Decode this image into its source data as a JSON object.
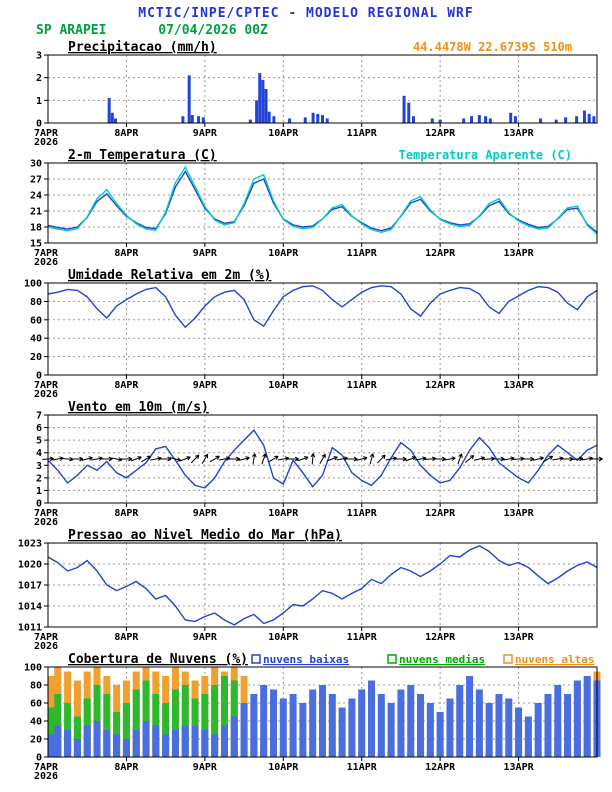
{
  "header": {
    "title": "MCTIC/INPE/CPTEC - MODELO REGIONAL WRF",
    "station": "SP ARAPEI",
    "datetime": "07/04/2026 00Z"
  },
  "colors": {
    "header_blue": "#2233dd",
    "station_green": "#00a040",
    "line_blue": "#2244cc",
    "apparent_cyan": "#00cccc",
    "location_orange": "#f39019",
    "grid_gray": "#999999",
    "axis_black": "#000000"
  },
  "x_axis": {
    "start_label": "7APR",
    "year_label": "2026",
    "day_labels": [
      "8APR",
      "9APR",
      "10APR",
      "11APR",
      "12APR",
      "13APR"
    ],
    "days_total": 7
  },
  "chart_data": [
    {
      "type": "bar",
      "title": "Precipitacao (mm/h)",
      "annotation": {
        "text": "44.4478W 22.6739S 510m",
        "color": "#f39019"
      },
      "ylim": [
        0,
        3
      ],
      "yticks": [
        0,
        1,
        2,
        3
      ],
      "bar_color": "#2343d7",
      "points": [
        [
          0.78,
          1.1
        ],
        [
          0.82,
          0.45
        ],
        [
          0.86,
          0.2
        ],
        [
          1.72,
          0.3
        ],
        [
          1.8,
          2.1
        ],
        [
          1.84,
          0.35
        ],
        [
          1.92,
          0.3
        ],
        [
          1.98,
          0.25
        ],
        [
          2.58,
          0.15
        ],
        [
          2.66,
          1.0
        ],
        [
          2.7,
          2.2
        ],
        [
          2.74,
          1.9
        ],
        [
          2.78,
          1.5
        ],
        [
          2.82,
          0.5
        ],
        [
          2.88,
          0.3
        ],
        [
          3.08,
          0.2
        ],
        [
          3.28,
          0.25
        ],
        [
          3.38,
          0.45
        ],
        [
          3.44,
          0.4
        ],
        [
          3.5,
          0.35
        ],
        [
          3.56,
          0.2
        ],
        [
          4.54,
          1.2
        ],
        [
          4.6,
          0.9
        ],
        [
          4.66,
          0.3
        ],
        [
          4.9,
          0.2
        ],
        [
          5.0,
          0.15
        ],
        [
          5.3,
          0.2
        ],
        [
          5.4,
          0.3
        ],
        [
          5.5,
          0.35
        ],
        [
          5.58,
          0.3
        ],
        [
          5.64,
          0.2
        ],
        [
          5.9,
          0.45
        ],
        [
          5.96,
          0.3
        ],
        [
          6.28,
          0.2
        ],
        [
          6.48,
          0.15
        ],
        [
          6.6,
          0.25
        ],
        [
          6.74,
          0.3
        ],
        [
          6.84,
          0.55
        ],
        [
          6.9,
          0.4
        ],
        [
          6.96,
          0.3
        ]
      ]
    },
    {
      "type": "line",
      "title": "2-m Temperatura (C)",
      "annotation": {
        "text": "Temperatura Aparente (C)",
        "color": "#00cccc"
      },
      "ylim": [
        15,
        30
      ],
      "yticks": [
        15,
        18,
        21,
        24,
        27,
        30
      ],
      "dt_days": 0.125,
      "series": [
        {
          "name": "2-m Temperatura",
          "color": "#2244cc",
          "values": [
            18.3,
            17.9,
            17.6,
            18.0,
            19.8,
            22.8,
            24.2,
            22.0,
            20.0,
            18.8,
            17.9,
            17.7,
            20.5,
            25.5,
            28.4,
            25.0,
            21.5,
            19.5,
            18.7,
            19.0,
            22.0,
            26.2,
            27.0,
            22.5,
            19.5,
            18.4,
            18.0,
            18.2,
            19.5,
            21.3,
            21.8,
            20.0,
            18.8,
            17.8,
            17.3,
            17.8,
            20.0,
            22.5,
            23.2,
            21.0,
            19.5,
            18.8,
            18.4,
            18.6,
            20.0,
            22.0,
            22.8,
            20.5,
            19.3,
            18.5,
            17.9,
            18.1,
            19.5,
            21.3,
            21.5,
            18.5,
            17.0
          ]
        },
        {
          "name": "Temperatura Aparente",
          "color": "#00cccc",
          "values": [
            18.0,
            17.6,
            17.3,
            17.7,
            19.9,
            23.3,
            25.0,
            22.4,
            20.2,
            18.6,
            17.6,
            17.4,
            20.8,
            26.3,
            29.2,
            25.6,
            21.8,
            19.3,
            18.4,
            18.8,
            22.4,
            27.0,
            27.8,
            22.9,
            19.4,
            18.1,
            17.7,
            17.9,
            19.5,
            21.6,
            22.2,
            20.1,
            18.6,
            17.5,
            17.0,
            17.5,
            20.1,
            22.9,
            23.7,
            21.2,
            19.4,
            18.6,
            18.1,
            18.3,
            20.1,
            22.4,
            23.3,
            20.7,
            19.1,
            18.2,
            17.6,
            17.8,
            19.6,
            21.6,
            21.9,
            18.3,
            16.7
          ]
        }
      ]
    },
    {
      "type": "line",
      "title": "Umidade Relativa em 2m (%)",
      "ylim": [
        0,
        100
      ],
      "yticks": [
        0,
        20,
        40,
        60,
        80,
        100
      ],
      "dt_days": 0.125,
      "series": [
        {
          "name": "Umidade Relativa",
          "color": "#2244cc",
          "values": [
            88,
            90,
            93,
            92,
            85,
            72,
            62,
            75,
            82,
            88,
            93,
            95,
            85,
            65,
            52,
            62,
            75,
            85,
            90,
            92,
            82,
            60,
            53,
            70,
            85,
            92,
            96,
            97,
            92,
            82,
            74,
            82,
            90,
            95,
            97,
            96,
            88,
            72,
            64,
            78,
            88,
            92,
            95,
            94,
            88,
            74,
            67,
            80,
            86,
            92,
            96,
            95,
            90,
            78,
            71,
            85,
            92
          ]
        }
      ]
    },
    {
      "type": "wind",
      "title": "Vento em 10m (m/s)",
      "ylim": [
        0,
        7
      ],
      "yticks": [
        0,
        1,
        2,
        3,
        4,
        5,
        6,
        7
      ],
      "dt_days": 0.125,
      "series": [
        {
          "name": "Velocidade do Vento",
          "color": "#2244cc",
          "values": [
            3.4,
            2.6,
            1.6,
            2.2,
            3.0,
            2.6,
            3.3,
            2.4,
            2.0,
            2.6,
            3.2,
            4.3,
            4.5,
            3.4,
            2.2,
            1.4,
            1.2,
            2.0,
            3.3,
            4.2,
            5.0,
            5.8,
            4.6,
            2.0,
            1.5,
            3.4,
            2.4,
            1.3,
            2.2,
            4.4,
            3.8,
            2.4,
            1.8,
            1.4,
            2.2,
            3.6,
            4.8,
            4.2,
            3.0,
            2.2,
            1.6,
            1.8,
            2.8,
            4.2,
            5.2,
            4.4,
            3.2,
            2.6,
            2.0,
            1.6,
            2.6,
            3.8,
            4.6,
            4.0,
            3.4,
            4.2,
            4.6
          ]
        }
      ],
      "barbs": {
        "y_value": 3.5,
        "color": "#000000",
        "directions_deg": [
          5,
          10,
          -5,
          0,
          15,
          10,
          0,
          -10,
          0,
          20,
          30,
          10,
          0,
          -15,
          20,
          45,
          60,
          30,
          10,
          0,
          15,
          80,
          70,
          30,
          10,
          0,
          20,
          85,
          60,
          20,
          10,
          0,
          15,
          75,
          45,
          10,
          0,
          20,
          10,
          5,
          0,
          10,
          70,
          40,
          15,
          5,
          0,
          10,
          5,
          0,
          15,
          30,
          10,
          0,
          5,
          10,
          0
        ]
      }
    },
    {
      "type": "line",
      "title": "Pressao ao Nivel Medio do Mar (hPa)",
      "ylim": [
        1011,
        1023
      ],
      "yticks": [
        1011,
        1014,
        1017,
        1020,
        1023
      ],
      "dt_days": 0.125,
      "series": [
        {
          "name": "Pressao ao Nivel do Mar",
          "color": "#2244cc",
          "values": [
            1021.0,
            1020.2,
            1019.0,
            1019.5,
            1020.5,
            1019.0,
            1017.0,
            1016.2,
            1016.8,
            1017.5,
            1016.5,
            1015.0,
            1015.5,
            1014.0,
            1012.0,
            1011.8,
            1012.5,
            1013.0,
            1012.0,
            1011.3,
            1012.2,
            1012.8,
            1011.5,
            1012.0,
            1013.0,
            1014.2,
            1014.0,
            1015.0,
            1016.2,
            1015.8,
            1015.0,
            1015.8,
            1016.5,
            1017.8,
            1017.2,
            1018.5,
            1019.5,
            1019.0,
            1018.2,
            1019.0,
            1020.0,
            1021.2,
            1021.0,
            1022.0,
            1022.6,
            1021.8,
            1020.5,
            1019.8,
            1020.2,
            1019.5,
            1018.3,
            1017.2,
            1018.0,
            1019.0,
            1019.8,
            1020.3,
            1019.5
          ]
        }
      ]
    },
    {
      "type": "overlay-bars",
      "title": "Cobertura de Nuvens (%)",
      "ylim": [
        0,
        100
      ],
      "yticks": [
        0,
        20,
        40,
        60,
        80,
        100
      ],
      "dt_days": 0.125,
      "legend": [
        {
          "label": "nuvens baixas",
          "color": "#2343d7"
        },
        {
          "label": "nuvens medias",
          "color": "#00aa00"
        },
        {
          "label": "nuvens altas",
          "color": "#f39019"
        }
      ],
      "series": [
        {
          "name": "nuvens altas",
          "color": "#f0a030",
          "values": [
            90,
            100,
            95,
            85,
            95,
            100,
            90,
            80,
            85,
            95,
            100,
            95,
            90,
            100,
            95,
            85,
            90,
            100,
            95,
            100,
            90,
            60,
            20,
            5,
            0,
            0,
            0,
            0,
            0,
            0,
            0,
            0,
            0,
            0,
            0,
            5,
            0,
            0,
            0,
            0,
            0,
            0,
            0,
            0,
            5,
            0,
            0,
            0,
            0,
            5,
            0,
            10,
            30,
            60,
            80,
            90,
            95
          ]
        },
        {
          "name": "nuvens medias",
          "color": "#2eb82e",
          "values": [
            55,
            70,
            60,
            45,
            65,
            80,
            70,
            50,
            60,
            75,
            85,
            70,
            60,
            75,
            80,
            65,
            70,
            80,
            90,
            85,
            40,
            20,
            10,
            5,
            5,
            10,
            5,
            0,
            5,
            10,
            5,
            10,
            5,
            0,
            5,
            10,
            5,
            5,
            0,
            5,
            10,
            5,
            0,
            5,
            10,
            5,
            5,
            0,
            5,
            10,
            5,
            10,
            15,
            10,
            5,
            10,
            5
          ]
        },
        {
          "name": "nuvens baixas",
          "color": "#4a6de0",
          "values": [
            25,
            35,
            30,
            20,
            35,
            40,
            30,
            25,
            20,
            30,
            40,
            35,
            25,
            30,
            35,
            35,
            30,
            25,
            35,
            45,
            60,
            70,
            80,
            75,
            65,
            70,
            60,
            75,
            80,
            70,
            55,
            65,
            75,
            85,
            70,
            60,
            75,
            80,
            70,
            60,
            50,
            65,
            80,
            90,
            75,
            60,
            70,
            65,
            55,
            45,
            60,
            70,
            80,
            70,
            85,
            90,
            85
          ]
        }
      ]
    }
  ]
}
